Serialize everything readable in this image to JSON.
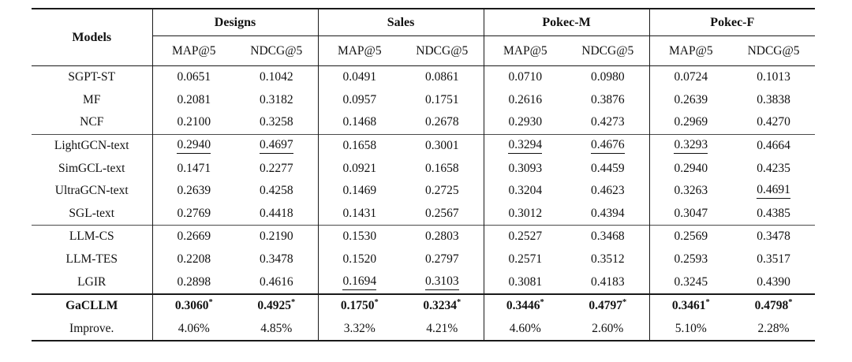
{
  "table": {
    "models_header": "Models",
    "col_groups": [
      {
        "label": "Designs"
      },
      {
        "label": "Sales"
      },
      {
        "label": "Pokec-M"
      },
      {
        "label": "Pokec-F"
      }
    ],
    "metric_headers": [
      "MAP@5",
      "NDCG@5",
      "MAP@5",
      "NDCG@5",
      "MAP@5",
      "NDCG@5",
      "MAP@5",
      "NDCG@5"
    ],
    "row_groups": [
      {
        "separator": "none",
        "rows": [
          {
            "model": "SGPT-ST",
            "cells": [
              "0.0651",
              "0.1042",
              "0.0491",
              "0.0861",
              "0.0710",
              "0.0980",
              "0.0724",
              "0.1013"
            ]
          },
          {
            "model": "MF",
            "cells": [
              "0.2081",
              "0.3182",
              "0.0957",
              "0.1751",
              "0.2616",
              "0.3876",
              "0.2639",
              "0.3838"
            ]
          },
          {
            "model": "NCF",
            "cells": [
              "0.2100",
              "0.3258",
              "0.1468",
              "0.2678",
              "0.2930",
              "0.4273",
              "0.2969",
              "0.4270"
            ]
          }
        ]
      },
      {
        "separator": "light",
        "rows": [
          {
            "model": "LightGCN-text",
            "cells": [
              {
                "v": "0.2940",
                "u": true
              },
              {
                "v": "0.4697",
                "u": true
              },
              "0.1658",
              "0.3001",
              {
                "v": "0.3294",
                "u": true
              },
              {
                "v": "0.4676",
                "u": true
              },
              {
                "v": "0.3293",
                "u": true
              },
              "0.4664"
            ]
          },
          {
            "model": "SimGCL-text",
            "cells": [
              "0.1471",
              "0.2277",
              "0.0921",
              "0.1658",
              "0.3093",
              "0.4459",
              "0.2940",
              "0.4235"
            ]
          },
          {
            "model": "UltraGCN-text",
            "cells": [
              "0.2639",
              "0.4258",
              "0.1469",
              "0.2725",
              "0.3204",
              "0.4623",
              "0.3263",
              {
                "v": "0.4691",
                "u": true
              }
            ]
          },
          {
            "model": "SGL-text",
            "cells": [
              "0.2769",
              "0.4418",
              "0.1431",
              "0.2567",
              "0.3012",
              "0.4394",
              "0.3047",
              "0.4385"
            ]
          }
        ]
      },
      {
        "separator": "light",
        "rows": [
          {
            "model": "LLM-CS",
            "cells": [
              "0.2669",
              "0.2190",
              "0.1530",
              "0.2803",
              "0.2527",
              "0.3468",
              "0.2569",
              "0.3478"
            ]
          },
          {
            "model": "LLM-TES",
            "cells": [
              "0.2208",
              "0.3478",
              "0.1520",
              "0.2797",
              "0.2571",
              "0.3512",
              "0.2593",
              "0.3517"
            ]
          },
          {
            "model": "LGIR",
            "cells": [
              "0.2898",
              "0.4616",
              {
                "v": "0.1694",
                "u": true
              },
              {
                "v": "0.3103",
                "u": true
              },
              "0.3081",
              "0.4183",
              "0.3245",
              "0.4390"
            ]
          }
        ]
      },
      {
        "separator": "heavy",
        "rows": [
          {
            "model": "GaCLLM",
            "bold": true,
            "cells": [
              {
                "v": "0.3060",
                "b": true,
                "sup": "*"
              },
              {
                "v": "0.4925",
                "b": true,
                "sup": "*"
              },
              {
                "v": "0.1750",
                "b": true,
                "sup": "*"
              },
              {
                "v": "0.3234",
                "b": true,
                "sup": "*"
              },
              {
                "v": "0.3446",
                "b": true,
                "sup": "*"
              },
              {
                "v": "0.4797",
                "b": true,
                "sup": "*"
              },
              {
                "v": "0.3461",
                "b": true,
                "sup": "*"
              },
              {
                "v": "0.4798",
                "b": true,
                "sup": "*"
              }
            ]
          },
          {
            "model": "Improve.",
            "cells": [
              "4.06%",
              "4.85%",
              "3.32%",
              "4.21%",
              "4.60%",
              "2.60%",
              "5.10%",
              "2.28%"
            ]
          }
        ]
      }
    ]
  }
}
